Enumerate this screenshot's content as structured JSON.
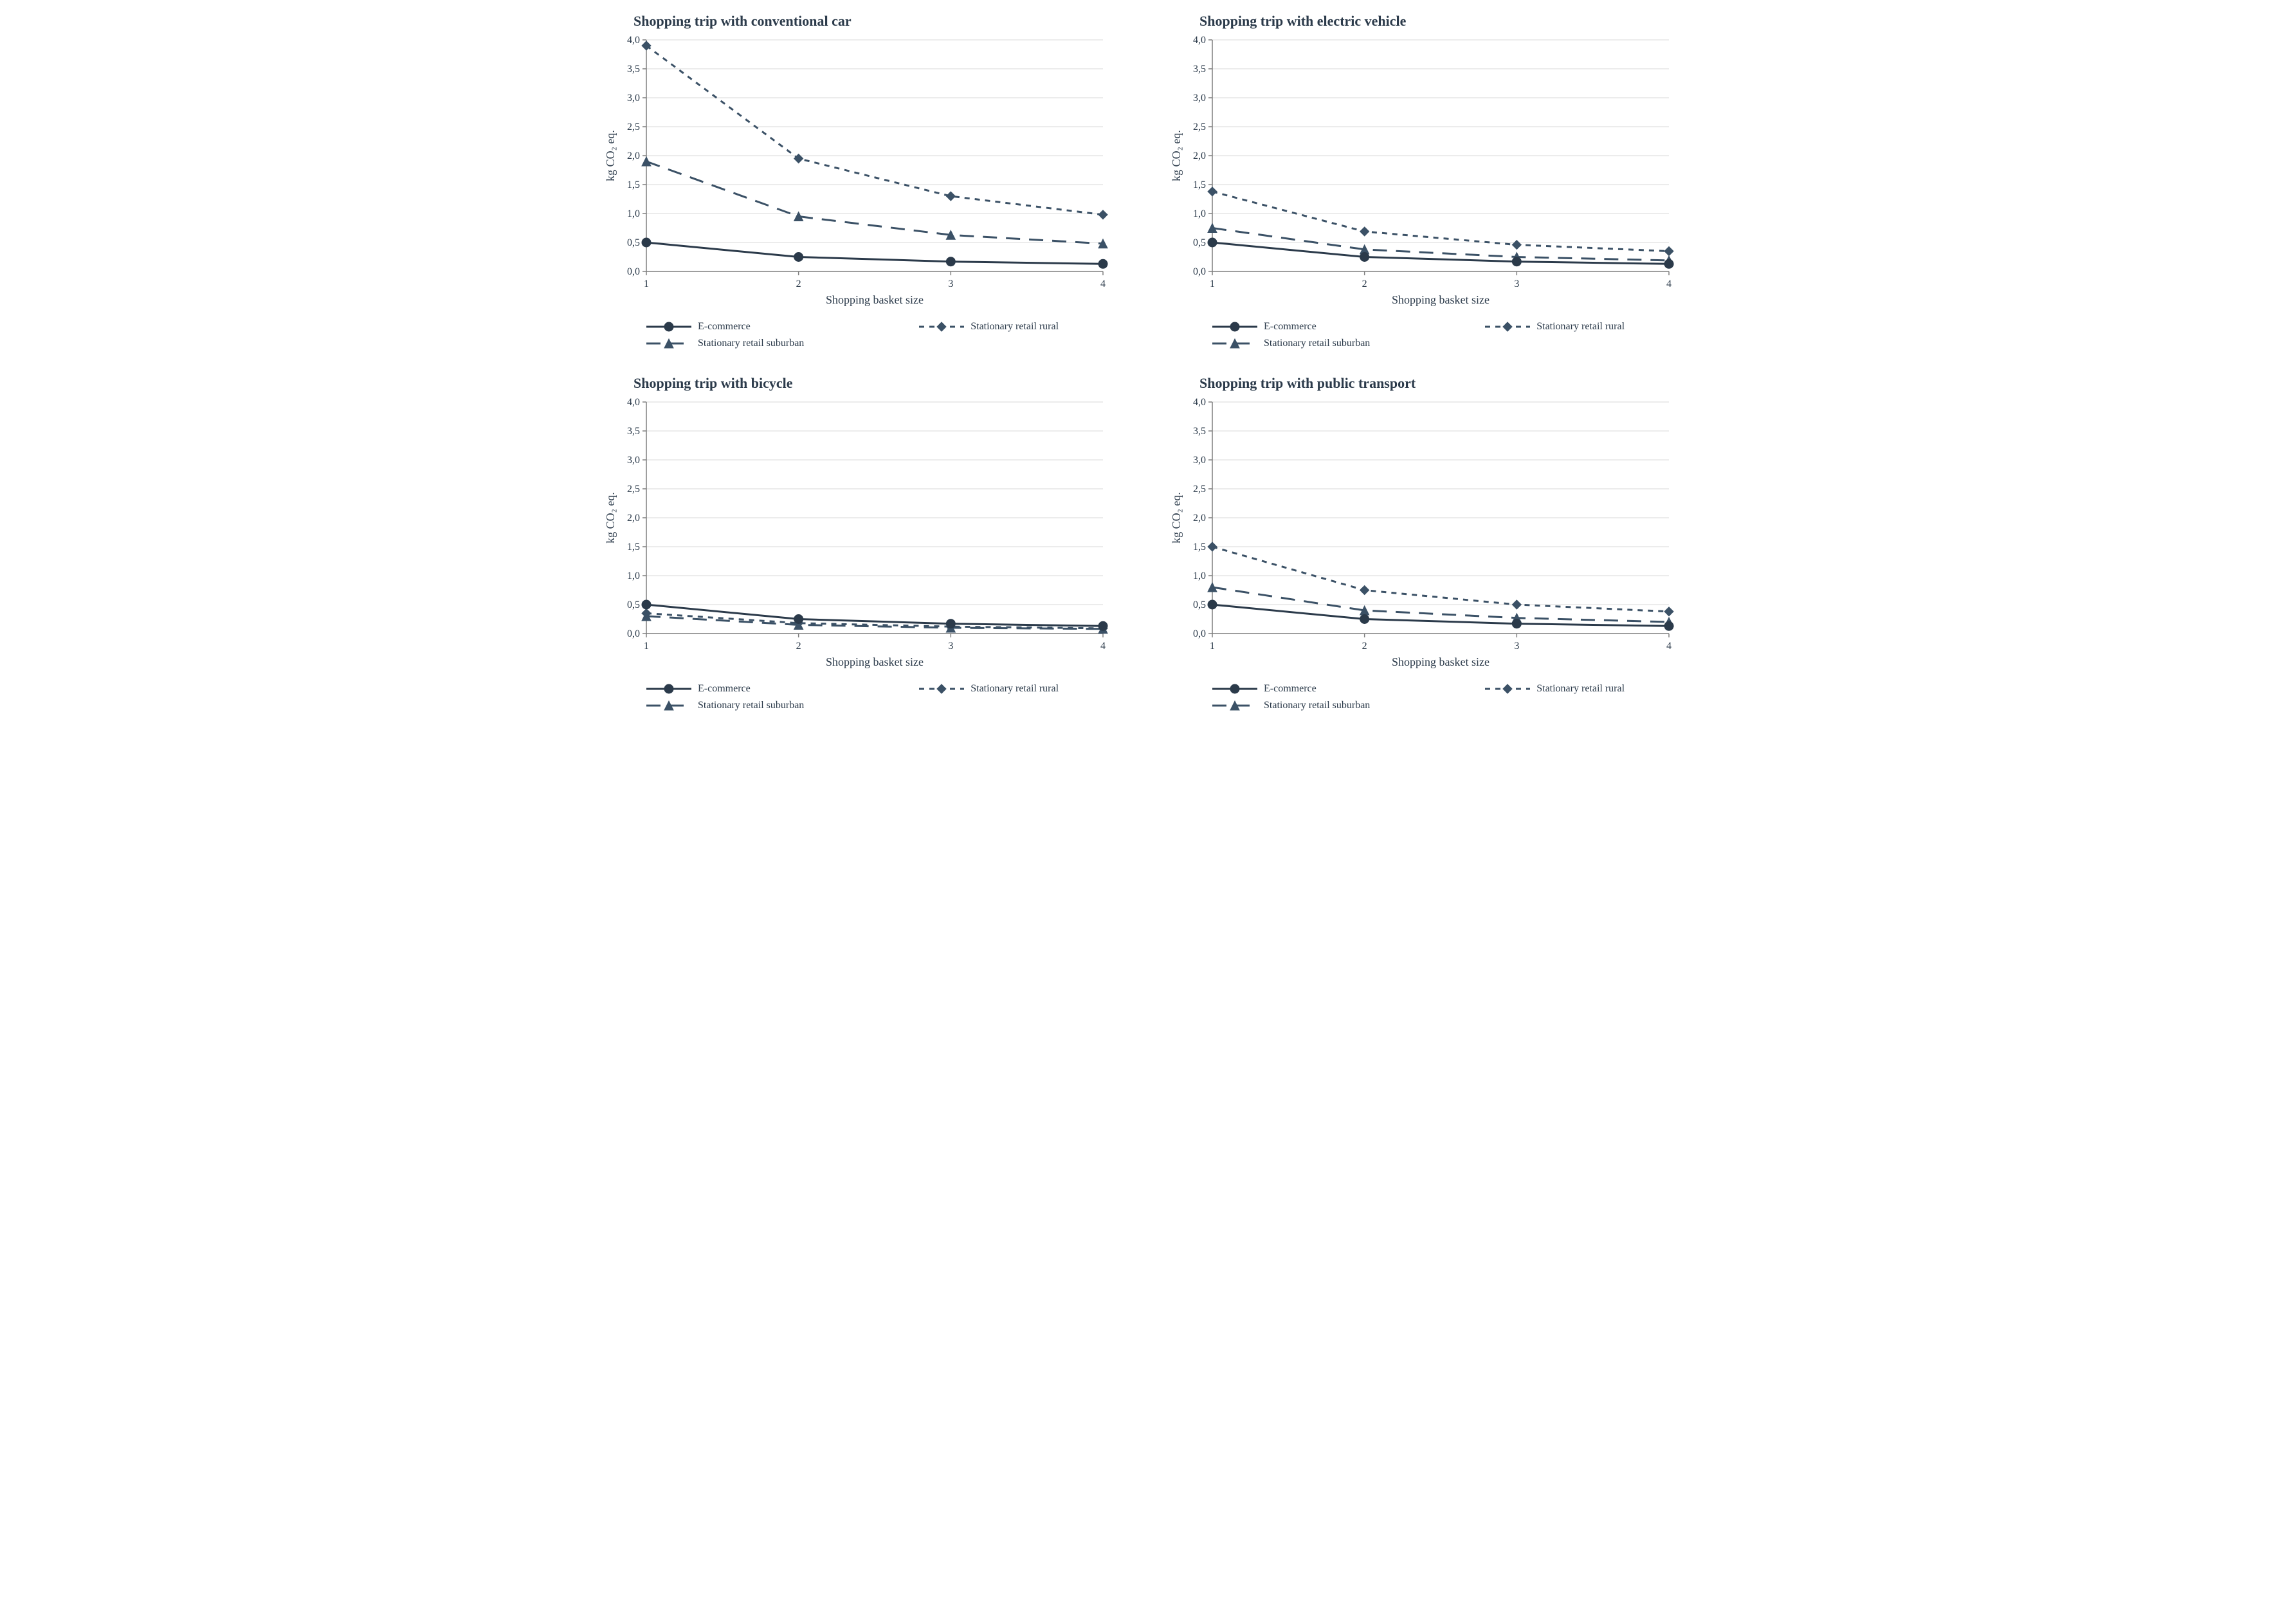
{
  "layout": {
    "rows": 2,
    "cols": 2,
    "background_color": "#ffffff"
  },
  "common": {
    "xlabel": "Shopping basket size",
    "ylabel": "kg CO₂ eq.",
    "xlim": [
      1,
      4
    ],
    "ylim": [
      0,
      4
    ],
    "xticks": [
      1,
      2,
      3,
      4
    ],
    "yticks": [
      0.0,
      0.5,
      1.0,
      1.5,
      2.0,
      2.5,
      3.0,
      3.5,
      4.0
    ],
    "ytick_labels": [
      "0,0",
      "0,5",
      "1,0",
      "1,5",
      "2,0",
      "2,5",
      "3,0",
      "3,5",
      "4,0"
    ],
    "grid_color": "#d9d9d9",
    "axis_color": "#7f7f7f",
    "tick_color": "#7f7f7f",
    "text_color": "#2b3a4a",
    "title_fontsize": 22,
    "label_fontsize": 18,
    "tick_fontsize": 16,
    "legend_fontsize": 16,
    "line_width": 3,
    "marker_size": 7
  },
  "series_styles": {
    "ecommerce": {
      "label": "E-commerce",
      "color": "#2b3a4a",
      "dash": "solid",
      "marker": "circle"
    },
    "rural": {
      "label": "Stationary retail rural",
      "color": "#3b5166",
      "dash": "short",
      "marker": "diamond"
    },
    "suburban": {
      "label": "Stationary retail suburban",
      "color": "#3b5166",
      "dash": "long",
      "marker": "triangle"
    }
  },
  "charts": [
    {
      "id": "conventional",
      "title": "Shopping trip with conventional car",
      "series": {
        "ecommerce": [
          0.5,
          0.25,
          0.17,
          0.13
        ],
        "rural": [
          3.9,
          1.95,
          1.3,
          0.98
        ],
        "suburban": [
          1.9,
          0.95,
          0.63,
          0.48
        ]
      }
    },
    {
      "id": "electric",
      "title": "Shopping trip with electric vehicle",
      "series": {
        "ecommerce": [
          0.5,
          0.25,
          0.17,
          0.13
        ],
        "rural": [
          1.38,
          0.69,
          0.46,
          0.35
        ],
        "suburban": [
          0.75,
          0.38,
          0.25,
          0.19
        ]
      }
    },
    {
      "id": "bicycle",
      "title": "Shopping trip with bicycle",
      "series": {
        "ecommerce": [
          0.5,
          0.25,
          0.17,
          0.13
        ],
        "rural": [
          0.35,
          0.18,
          0.12,
          0.09
        ],
        "suburban": [
          0.3,
          0.15,
          0.1,
          0.08
        ]
      }
    },
    {
      "id": "public",
      "title": "Shopping trip with public transport",
      "series": {
        "ecommerce": [
          0.5,
          0.25,
          0.17,
          0.13
        ],
        "rural": [
          1.5,
          0.75,
          0.5,
          0.38
        ],
        "suburban": [
          0.8,
          0.4,
          0.27,
          0.2
        ]
      }
    }
  ]
}
